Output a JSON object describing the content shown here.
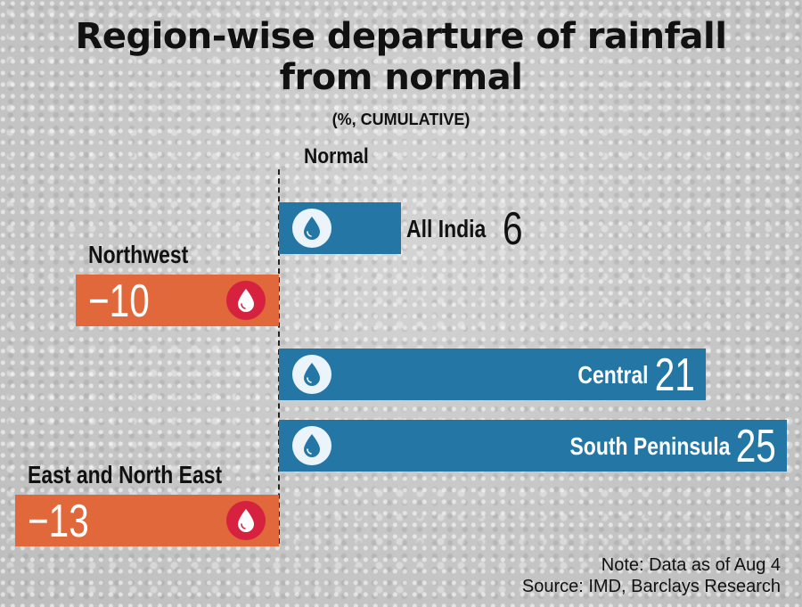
{
  "chart_data": {
    "type": "bar",
    "orientation": "horizontal",
    "title": "Region-wise departure of rainfall from normal",
    "title_lines": [
      "Region-wise departure of rainfall",
      "from normal"
    ],
    "subtitle": "(%, CUMULATIVE)",
    "baseline_label": "Normal",
    "unit": "%",
    "xlim": [
      -14,
      26
    ],
    "categories": [
      "All India",
      "Northwest",
      "Central",
      "South Peninsula",
      "East and North East"
    ],
    "values": [
      6,
      -10,
      21,
      25,
      -13
    ],
    "display_values": [
      "6",
      "−10",
      "21",
      "25",
      "−13"
    ],
    "colors": {
      "positive": "#2477a5",
      "negative": "#e0683a",
      "positive_badge": "#eaf4fa",
      "negative_badge": "#d6213f"
    }
  },
  "footer": {
    "note": "Note: Data as of Aug 4",
    "source": "Source: IMD, Barclays Research"
  },
  "icons": {
    "drop": "water-drop-icon"
  }
}
